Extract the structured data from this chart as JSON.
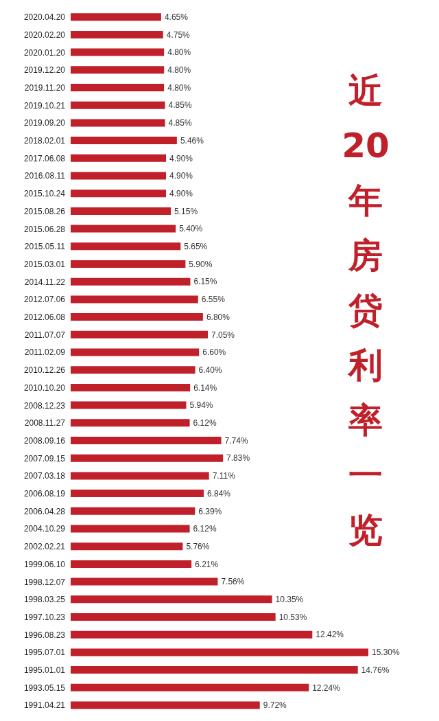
{
  "chart_data": {
    "type": "bar",
    "orientation": "horizontal",
    "title": "近20年房贷利率一览",
    "color": "#c0202a",
    "categories": [
      "2020.04.20",
      "2020.02.20",
      "2020.01.20",
      "2019.12.20",
      "2019.11.20",
      "2019.10.21",
      "2019.09.20",
      "2018.02.01",
      "2017.06.08",
      "2016.08.11",
      "2015.10.24",
      "2015.08.26",
      "2015.06.28",
      "2015.05.11",
      "2015.03.01",
      "2014.11.22",
      "2012.07.06",
      "2012.06.08",
      "2011.07.07",
      "2011.02.09",
      "2010.12.26",
      "2010.10.20",
      "2008.12.23",
      "2008.11.27",
      "2008.09.16",
      "2007.09.15",
      "2007.03.18",
      "2006.08.19",
      "2006.04.28",
      "2004.10.29",
      "2002.02.21",
      "1999.06.10",
      "1998.12.07",
      "1998.03.25",
      "1997.10.23",
      "1996.08.23",
      "1995.07.01",
      "1995.01.01",
      "1993.05.15",
      "1991.04.21"
    ],
    "values": [
      4.65,
      4.75,
      4.8,
      4.8,
      4.8,
      4.85,
      4.85,
      5.46,
      4.9,
      4.9,
      4.9,
      5.15,
      5.4,
      5.65,
      5.9,
      6.15,
      6.55,
      6.8,
      7.05,
      6.6,
      6.4,
      6.14,
      5.94,
      6.12,
      7.74,
      7.83,
      7.11,
      6.84,
      6.39,
      6.12,
      5.76,
      6.21,
      7.56,
      10.35,
      10.53,
      12.42,
      15.3,
      14.76,
      12.24,
      9.72
    ],
    "value_labels": [
      "4.65%",
      "4.75%",
      "4.80%",
      "4.80%",
      "4.80%",
      "4.85%",
      "4.85%",
      "5.46%",
      "4.90%",
      "4.90%",
      "4.90%",
      "5.15%",
      "5.40%",
      "5.65%",
      "5.90%",
      "6.15%",
      "6.55%",
      "6.80%",
      "7.05%",
      "6.60%",
      "6.40%",
      "6.14%",
      "5.94%",
      "6.12%",
      "7.74%",
      "7.83%",
      "7.11%",
      "6.84%",
      "6.39%",
      "6.12%",
      "5.76%",
      "6.21%",
      "7.56%",
      "10.35%",
      "10.53%",
      "12.42%",
      "15.30%",
      "14.76%",
      "12.24%",
      "9.72%"
    ]
  }
}
